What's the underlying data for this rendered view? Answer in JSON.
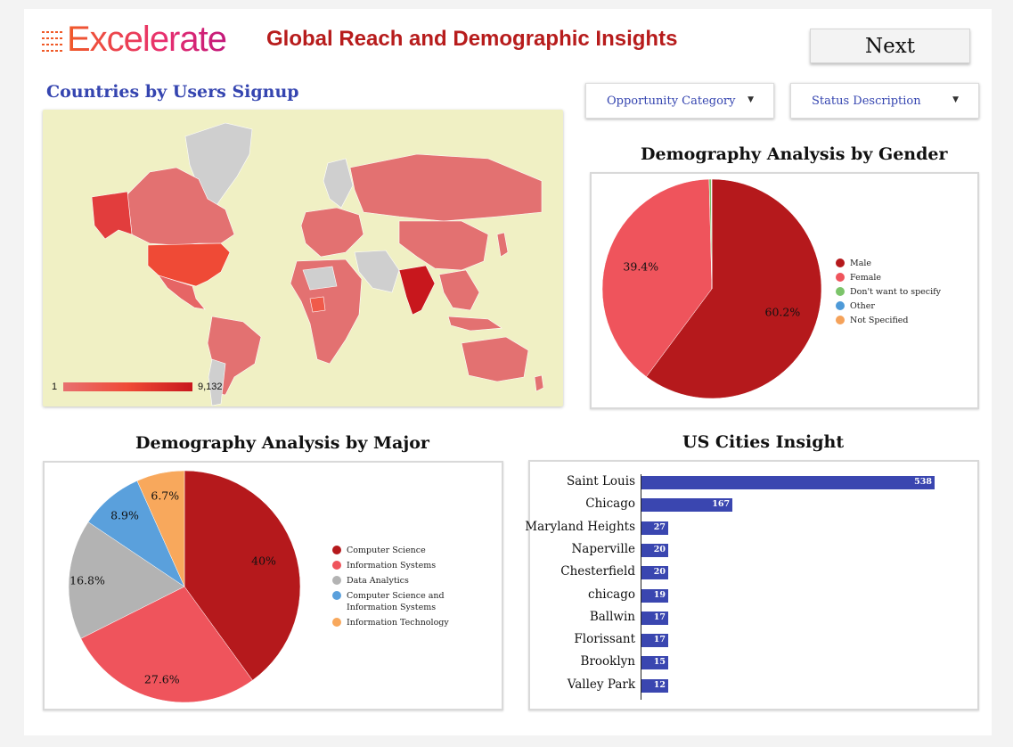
{
  "header": {
    "logo_text": "Excelerate",
    "title": "Global Reach and Demographic Insights",
    "next_label": "Next"
  },
  "colors": {
    "title_red": "#b71c1c",
    "accent_blue": "#3545b0",
    "male": "#b5191c",
    "female": "#ef545c",
    "dont_want": "#7cc46a",
    "other": "#4e9ad8",
    "not_specified": "#f5a25a",
    "major_cs": "#b5191c",
    "major_is": "#ef545c",
    "major_da": "#b3b3b3",
    "major_csis": "#5aa0dc",
    "major_it": "#f8a85c",
    "bar": "#3a46b0"
  },
  "filters": {
    "opportunity_category": "Opportunity Category",
    "status_description": "Status Description"
  },
  "map": {
    "title": "Countries by Users Signup",
    "scale_min": "1",
    "scale_max": "9,132"
  },
  "chart_data": [
    {
      "type": "pie",
      "title": "Demography Analysis by Gender",
      "labels": [
        "Male",
        "Female",
        "Don't want to specify",
        "Other",
        "Not Specified"
      ],
      "values": [
        60.2,
        39.4,
        0.3,
        0.05,
        0.05
      ],
      "percent_labels": [
        "60.2%",
        "39.4%"
      ]
    },
    {
      "type": "pie",
      "title": "Demography Analysis by Major",
      "labels": [
        "Computer Science",
        "Information Systems",
        "Data Analytics",
        "Computer Science and Information Systems",
        "Information Technology"
      ],
      "legend_lines": [
        [
          "Computer Science"
        ],
        [
          "Information Systems"
        ],
        [
          "Data Analytics"
        ],
        [
          "Computer Science and",
          "Information Systems"
        ],
        [
          "Information Technology"
        ]
      ],
      "values": [
        40,
        27.6,
        16.8,
        8.9,
        6.7
      ],
      "percent_labels": [
        "40%",
        "27.6%",
        "16.8%",
        "8.9%",
        "6.7%"
      ]
    },
    {
      "type": "bar",
      "orientation": "horizontal",
      "title": "US Cities Insight",
      "categories": [
        "Saint Louis",
        "Chicago",
        "Maryland Heights",
        "Naperville",
        "Chesterfield",
        "chicago",
        "Ballwin",
        "Florissant",
        "Brooklyn",
        "Valley Park"
      ],
      "values": [
        538,
        167,
        27,
        20,
        20,
        19,
        17,
        17,
        15,
        12
      ]
    }
  ]
}
